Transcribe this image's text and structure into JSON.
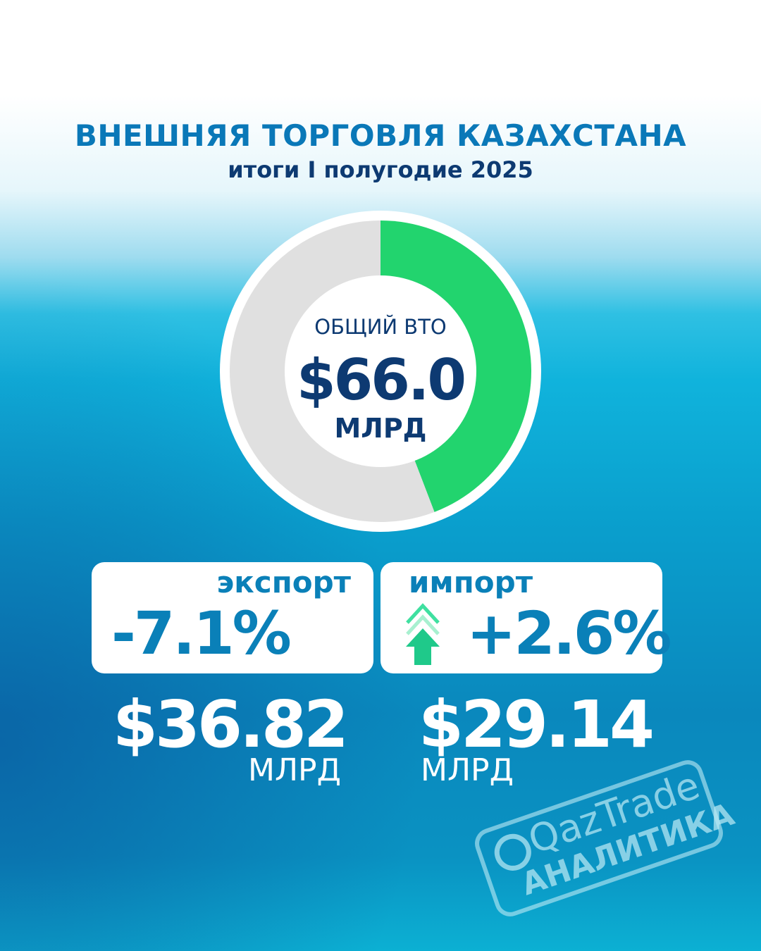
{
  "header": {
    "title": "ВНЕШНЯЯ ТОРГОВЛЯ КАЗАХСТАНА",
    "subtitle": "итоги I полугодие 2025"
  },
  "chart_data": {
    "type": "pie",
    "subtype": "donut",
    "categories": [
      "экспорт",
      "импорт"
    ],
    "values": [
      36.82,
      29.14
    ],
    "colors": [
      "#e0e0e0",
      "#22d46e"
    ],
    "center_label": "ОБЩИЙ ВТО",
    "center_value": "$66.0",
    "center_unit": "МЛРД"
  },
  "export": {
    "label": "экспорт",
    "change": "-7.1%",
    "value": "$36.82",
    "unit": "МЛРД"
  },
  "import": {
    "label": "импорт",
    "change": "+2.6%",
    "value": "$29.14",
    "unit": "МЛРД",
    "trend_icon": "arrow-up-icon"
  },
  "watermark": {
    "brand": "QazTrade",
    "sub": "АНАЛИТИКА"
  }
}
